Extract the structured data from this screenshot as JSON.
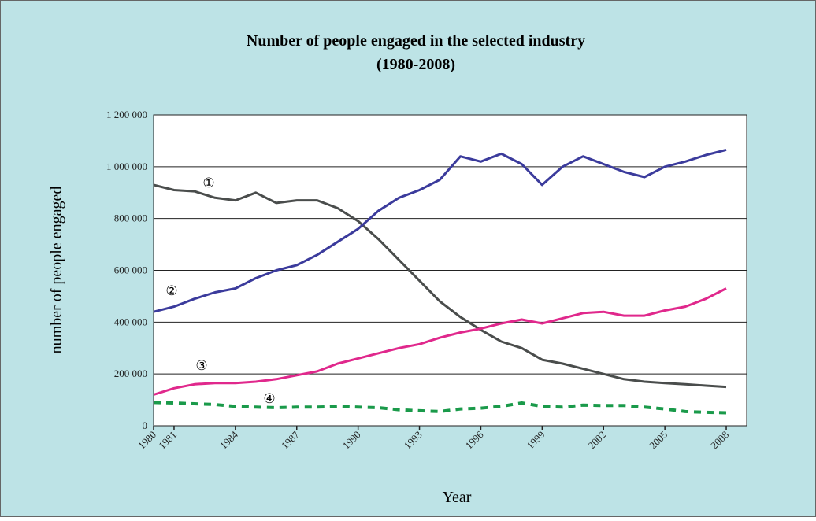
{
  "chart_data": {
    "type": "line",
    "title": "Number of people engaged in the selected industry",
    "subtitle": "(1980-2008)",
    "x_label": "Year",
    "y_label": "number of people engaged",
    "x": [
      1980,
      1981,
      1982,
      1983,
      1984,
      1985,
      1986,
      1987,
      1988,
      1989,
      1990,
      1991,
      1992,
      1993,
      1994,
      1995,
      1996,
      1997,
      1998,
      1999,
      2000,
      2001,
      2002,
      2003,
      2004,
      2005,
      2006,
      2007,
      2008
    ],
    "series": [
      {
        "name": "①",
        "color": "#4a4d4c",
        "dashed": false,
        "values": [
          930000,
          910000,
          905000,
          880000,
          870000,
          900000,
          860000,
          870000,
          870000,
          840000,
          790000,
          720000,
          640000,
          560000,
          480000,
          420000,
          370000,
          325000,
          300000,
          255000,
          240000,
          220000,
          200000,
          180000,
          170000,
          165000,
          160000,
          155000,
          150000
        ]
      },
      {
        "name": "②",
        "color": "#3b3b9c",
        "dashed": false,
        "values": [
          440000,
          460000,
          490000,
          515000,
          530000,
          570000,
          600000,
          620000,
          660000,
          710000,
          760000,
          830000,
          880000,
          910000,
          950000,
          1040000,
          1020000,
          1050000,
          1010000,
          930000,
          1000000,
          1040000,
          1010000,
          980000,
          960000,
          1000000,
          1020000,
          1045000,
          1065000
        ]
      },
      {
        "name": "③",
        "color": "#e0288c",
        "dashed": false,
        "values": [
          120000,
          145000,
          160000,
          165000,
          165000,
          170000,
          180000,
          195000,
          210000,
          240000,
          260000,
          280000,
          300000,
          315000,
          340000,
          360000,
          375000,
          395000,
          410000,
          395000,
          415000,
          435000,
          440000,
          425000,
          425000,
          445000,
          460000,
          490000,
          530000
        ]
      },
      {
        "name": "④",
        "color": "#1a9a4a",
        "dashed": true,
        "values": [
          90000,
          88000,
          85000,
          82000,
          75000,
          72000,
          70000,
          72000,
          72000,
          75000,
          72000,
          70000,
          62000,
          58000,
          55000,
          65000,
          68000,
          75000,
          88000,
          75000,
          72000,
          80000,
          78000,
          78000,
          72000,
          65000,
          55000,
          52000,
          50000
        ]
      }
    ],
    "xlim": [
      1980,
      2009
    ],
    "xticks": [
      1980,
      1981,
      1984,
      1987,
      1990,
      1993,
      1996,
      1999,
      2002,
      2005,
      2008
    ],
    "ylim": [
      0,
      1200000
    ],
    "yticks": [
      0,
      {
        "value": 200000,
        "label": "200 000"
      },
      {
        "value": 400000,
        "label": "400 000"
      },
      {
        "value": 600000,
        "label": "600 000"
      },
      {
        "value": 800000,
        "label": "800 000"
      },
      {
        "value": 1000000,
        "label": "1 000 000"
      },
      {
        "value": 1200000,
        "label": "1 200 000"
      }
    ],
    "grid": true
  }
}
